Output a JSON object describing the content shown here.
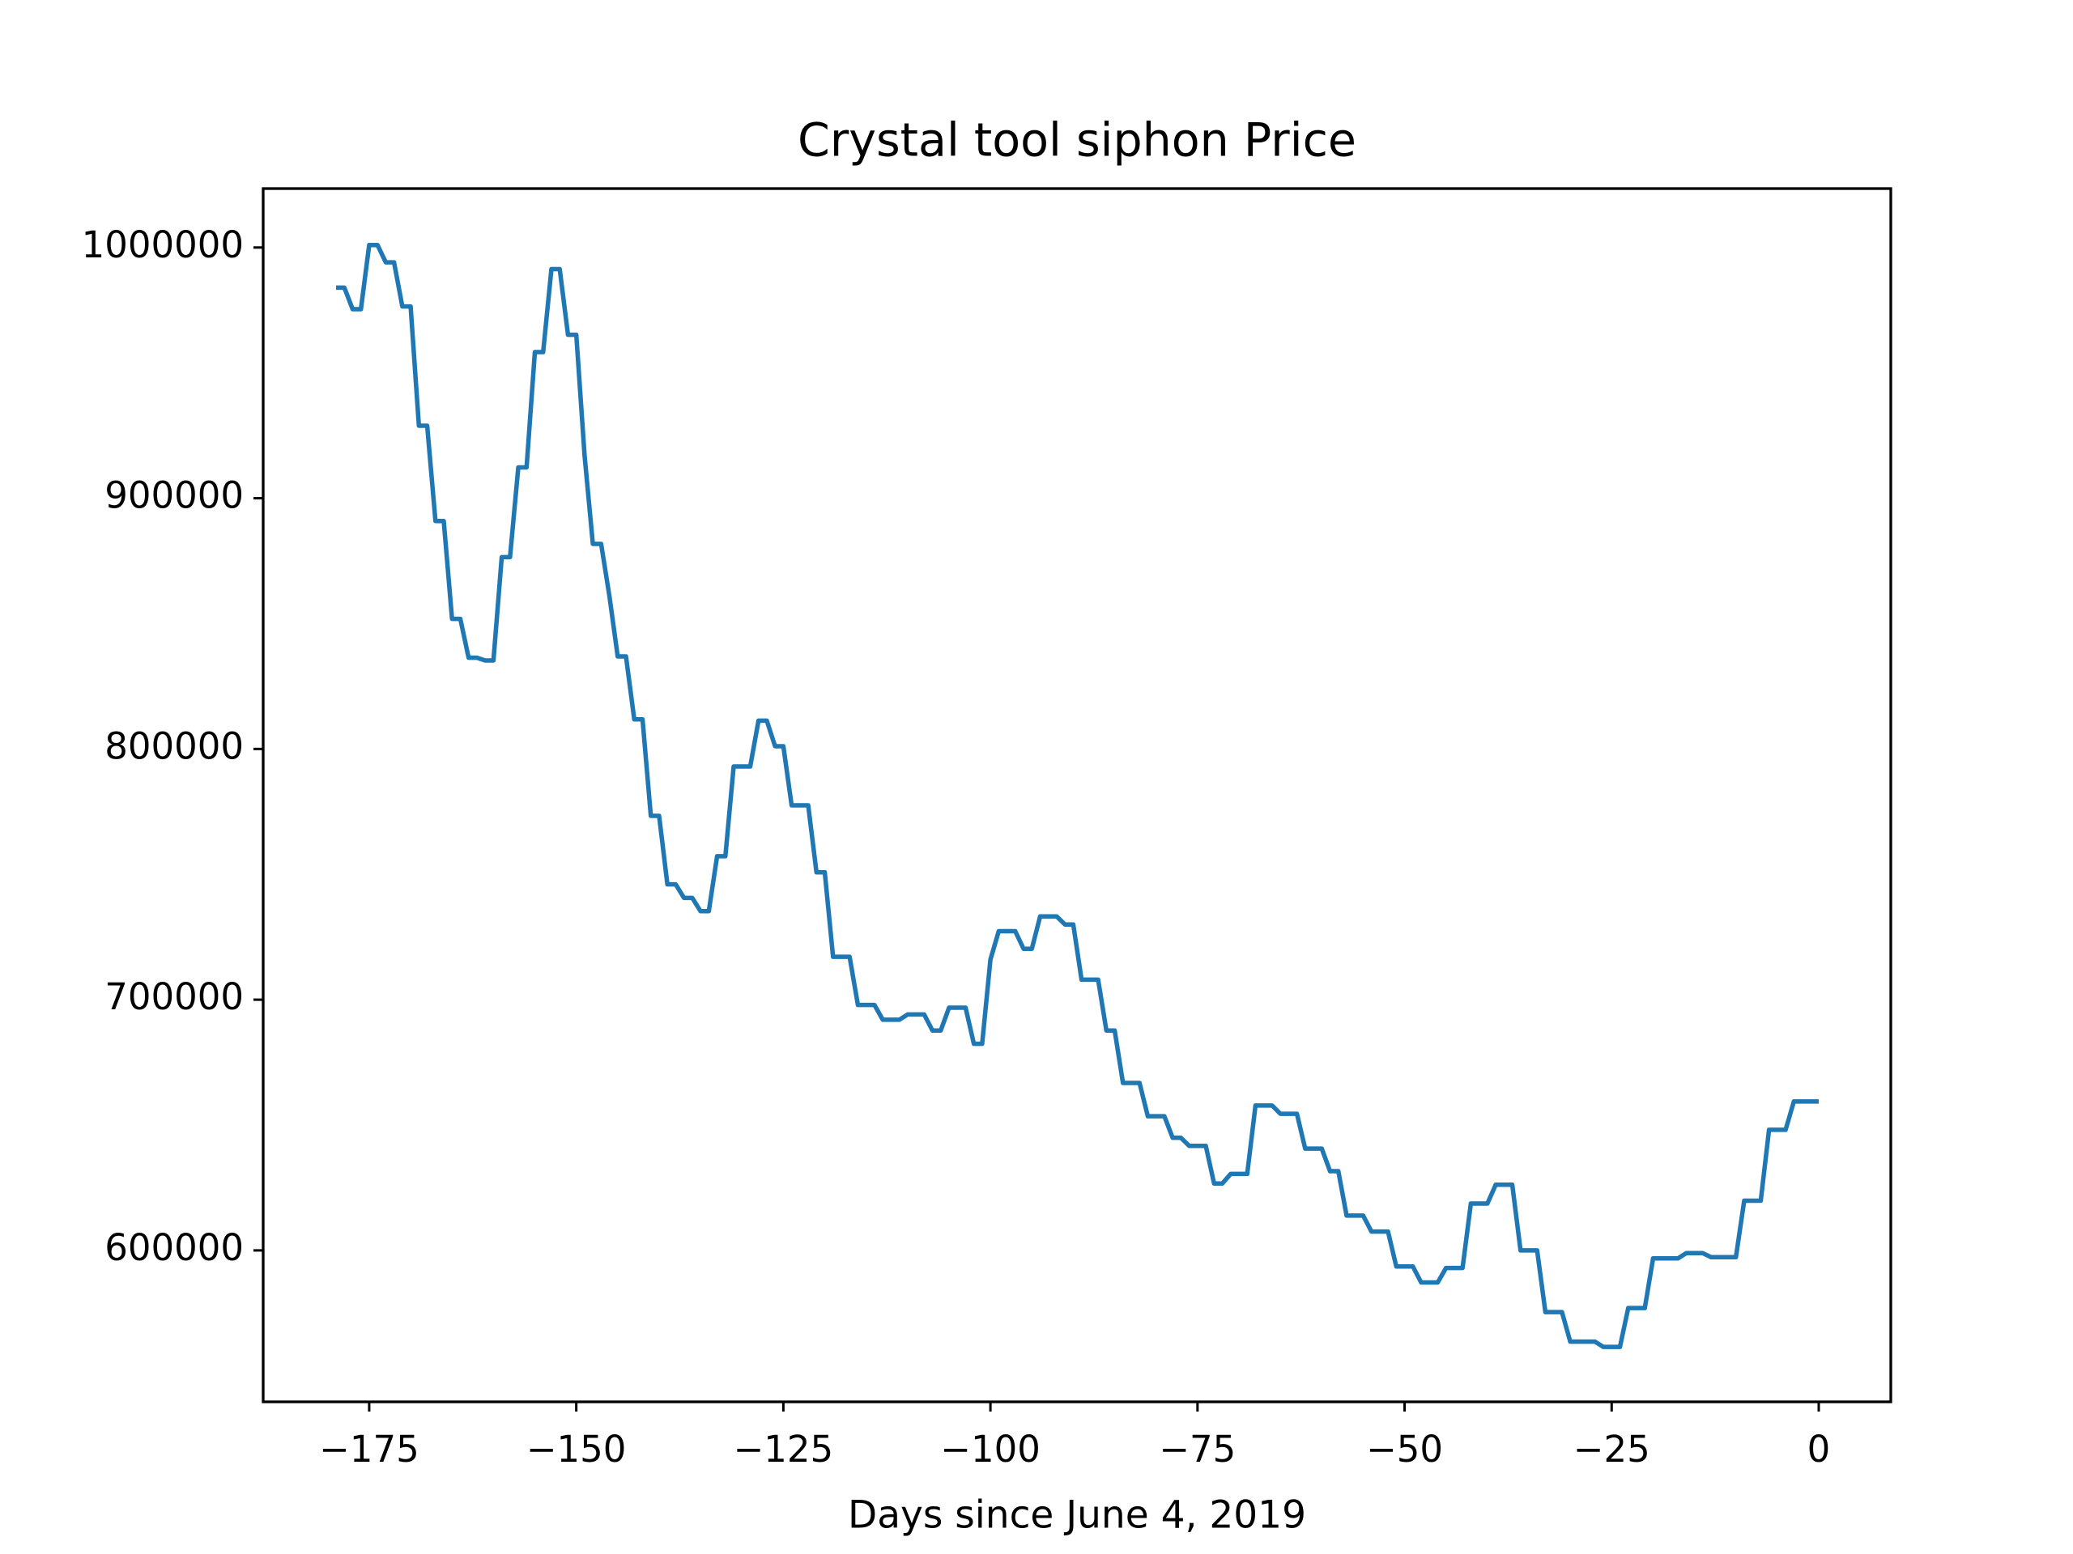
{
  "chart_data": {
    "type": "line",
    "title": "Crystal tool siphon Price",
    "x_label": "Days since June 4, 2019",
    "xlim": [
      -187.8,
      8.7
    ],
    "ylim": [
      539600,
      1023500
    ],
    "xticks": [
      {
        "value": -175,
        "label": "−175"
      },
      {
        "value": -150,
        "label": "−150"
      },
      {
        "value": -125,
        "label": "−125"
      },
      {
        "value": -100,
        "label": "−100"
      },
      {
        "value": -75,
        "label": "−75"
      },
      {
        "value": -50,
        "label": "−50"
      },
      {
        "value": -25,
        "label": "−25"
      },
      0
    ],
    "yticks": [
      600000,
      700000,
      800000,
      900000,
      1000000
    ],
    "grid": false,
    "x": [
      -179,
      -178,
      -177,
      -176,
      -175,
      -174,
      -173,
      -172,
      -171,
      -170,
      -169,
      -168,
      -167,
      -166,
      -165,
      -164,
      -163,
      -162,
      -161,
      -160,
      -159,
      -158,
      -157,
      -156,
      -155,
      -154,
      -153,
      -152,
      -151,
      -150,
      -149,
      -148,
      -147,
      -146,
      -145,
      -144,
      -143,
      -142,
      -141,
      -140,
      -139,
      -138,
      -137,
      -136,
      -135,
      -134,
      -133,
      -132,
      -131,
      -130,
      -129,
      -128,
      -127,
      -126,
      -125,
      -124,
      -123,
      -122,
      -121,
      -120,
      -119,
      -118,
      -117,
      -116,
      -115,
      -114,
      -113,
      -112,
      -111,
      -110,
      -109,
      -108,
      -107,
      -106,
      -105,
      -104,
      -103,
      -102,
      -101,
      -100,
      -99,
      -98,
      -97,
      -96,
      -95,
      -94,
      -93,
      -92,
      -91,
      -90,
      -89,
      -88,
      -87,
      -86,
      -85,
      -84,
      -83,
      -82,
      -81,
      -80,
      -79,
      -78,
      -77,
      -76,
      -75,
      -74,
      -73,
      -72,
      -71,
      -70,
      -69,
      -68,
      -67,
      -66,
      -65,
      -64,
      -63,
      -62,
      -61,
      -60,
      -59,
      -58,
      -57,
      -56,
      -55,
      -54,
      -53,
      -52,
      -51,
      -50,
      -49,
      -48,
      -47,
      -46,
      -45,
      -44,
      -43,
      -42,
      -41,
      -40,
      -39,
      -38,
      -37,
      -36,
      -35,
      -34,
      -33,
      -32,
      -31,
      -30,
      -29,
      -28,
      -27,
      -26,
      -25,
      -24,
      -23,
      -22,
      -21,
      -20,
      -19,
      -18,
      -17,
      -16,
      -15,
      -14,
      -13,
      -12,
      -11,
      -10,
      -9,
      -8,
      -7,
      -6,
      -5,
      -4,
      -3,
      -2,
      -1,
      0
    ],
    "series": [
      {
        "name": "Price",
        "color": "#1f77b4",
        "values": [
          984000,
          984000,
          975400,
          975400,
          1001000,
          1001000,
          994100,
          994100,
          976500,
          976500,
          928900,
          928900,
          890900,
          890900,
          851900,
          851900,
          836400,
          836400,
          835300,
          835300,
          876500,
          876500,
          912300,
          912300,
          958300,
          958300,
          991400,
          991400,
          965200,
          965200,
          917100,
          881800,
          881800,
          861000,
          836900,
          836900,
          811800,
          811800,
          773300,
          773300,
          746000,
          746000,
          740600,
          740600,
          735300,
          735300,
          757200,
          757200,
          793000,
          793000,
          793000,
          811300,
          811300,
          801100,
          801100,
          777500,
          777500,
          777500,
          750800,
          750800,
          717100,
          717100,
          717100,
          697900,
          697900,
          697900,
          692000,
          692000,
          692000,
          694100,
          694100,
          694100,
          687700,
          687700,
          696800,
          696800,
          696800,
          682400,
          682400,
          716000,
          727300,
          727300,
          727300,
          720300,
          720300,
          733200,
          733200,
          733200,
          730000,
          730000,
          708000,
          708000,
          708000,
          687700,
          687700,
          666800,
          666800,
          666800,
          653500,
          653500,
          653500,
          644900,
          644900,
          641700,
          641700,
          641700,
          626700,
          626700,
          630500,
          630500,
          630500,
          657800,
          657800,
          657800,
          654500,
          654500,
          654500,
          640600,
          640600,
          640600,
          631600,
          631600,
          613900,
          613900,
          613900,
          607500,
          607500,
          607500,
          593600,
          593600,
          593600,
          587200,
          587200,
          587200,
          593000,
          593000,
          593000,
          618700,
          618700,
          618700,
          626200,
          626200,
          626200,
          600000,
          600000,
          600000,
          575400,
          575400,
          575400,
          563600,
          563600,
          563600,
          563600,
          561500,
          561500,
          561500,
          577000,
          577000,
          577000,
          596800,
          596800,
          596800,
          596800,
          598900,
          598900,
          598900,
          597300,
          597300,
          597300,
          597300,
          619800,
          619800,
          619800,
          648100,
          648100,
          648100,
          659400,
          659400,
          659400,
          659400
        ]
      }
    ]
  }
}
